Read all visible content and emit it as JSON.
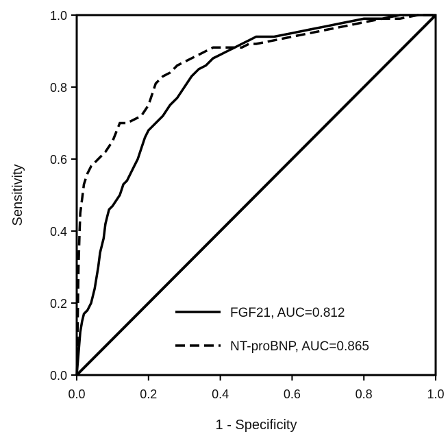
{
  "chart_data": {
    "type": "line",
    "title": "",
    "xlabel": "1 - Specificity",
    "ylabel": "Sensitivity",
    "xlim": [
      0.0,
      1.0
    ],
    "ylim": [
      0.0,
      1.0
    ],
    "x_ticks": [
      "0.0",
      "0.2",
      "0.4",
      "0.6",
      "0.8",
      "1.0"
    ],
    "y_ticks": [
      "0.0",
      "0.2",
      "0.4",
      "0.6",
      "0.8",
      "1.0"
    ],
    "grid": false,
    "legend_position": "bottom-right",
    "series": [
      {
        "name": "FGF21, AUC=0.812",
        "style": "solid",
        "color": "#000000",
        "x": [
          0.0,
          0.005,
          0.01,
          0.015,
          0.02,
          0.03,
          0.04,
          0.045,
          0.05,
          0.06,
          0.065,
          0.07,
          0.075,
          0.08,
          0.085,
          0.09,
          0.1,
          0.12,
          0.13,
          0.14,
          0.15,
          0.16,
          0.17,
          0.18,
          0.19,
          0.2,
          0.21,
          0.22,
          0.24,
          0.26,
          0.28,
          0.3,
          0.32,
          0.34,
          0.36,
          0.38,
          0.4,
          0.42,
          0.44,
          0.46,
          0.48,
          0.5,
          0.55,
          0.6,
          0.65,
          0.7,
          0.75,
          0.8,
          0.85,
          0.9,
          0.95,
          1.0
        ],
        "y": [
          0.0,
          0.06,
          0.12,
          0.15,
          0.17,
          0.18,
          0.2,
          0.22,
          0.24,
          0.3,
          0.34,
          0.36,
          0.38,
          0.42,
          0.44,
          0.46,
          0.47,
          0.5,
          0.53,
          0.54,
          0.56,
          0.58,
          0.6,
          0.63,
          0.66,
          0.68,
          0.69,
          0.7,
          0.72,
          0.75,
          0.77,
          0.8,
          0.83,
          0.85,
          0.86,
          0.88,
          0.89,
          0.9,
          0.91,
          0.92,
          0.93,
          0.94,
          0.94,
          0.95,
          0.96,
          0.97,
          0.98,
          0.99,
          0.99,
          1.0,
          1.0,
          1.0
        ]
      },
      {
        "name": "NT-proBNP, AUC=0.865",
        "style": "dashed",
        "color": "#000000",
        "x": [
          0.0,
          0.002,
          0.005,
          0.008,
          0.01,
          0.015,
          0.02,
          0.03,
          0.04,
          0.05,
          0.06,
          0.08,
          0.1,
          0.12,
          0.14,
          0.16,
          0.18,
          0.2,
          0.22,
          0.24,
          0.26,
          0.28,
          0.3,
          0.32,
          0.34,
          0.36,
          0.38,
          0.4,
          0.42,
          0.44,
          0.46,
          0.48,
          0.5,
          0.55,
          0.6,
          0.65,
          0.7,
          0.75,
          0.8,
          0.85,
          0.9,
          0.95,
          1.0
        ],
        "y": [
          0.0,
          0.1,
          0.3,
          0.4,
          0.45,
          0.49,
          0.53,
          0.56,
          0.58,
          0.59,
          0.6,
          0.62,
          0.65,
          0.7,
          0.7,
          0.71,
          0.72,
          0.75,
          0.81,
          0.83,
          0.84,
          0.86,
          0.87,
          0.88,
          0.89,
          0.9,
          0.91,
          0.91,
          0.91,
          0.91,
          0.91,
          0.92,
          0.92,
          0.93,
          0.94,
          0.95,
          0.96,
          0.97,
          0.98,
          0.99,
          0.99,
          1.0,
          1.0
        ]
      },
      {
        "name": "",
        "style": "solid",
        "role": "reference-diagonal",
        "color": "#000000",
        "x": [
          0.0,
          1.0
        ],
        "y": [
          0.0,
          1.0
        ]
      }
    ]
  }
}
